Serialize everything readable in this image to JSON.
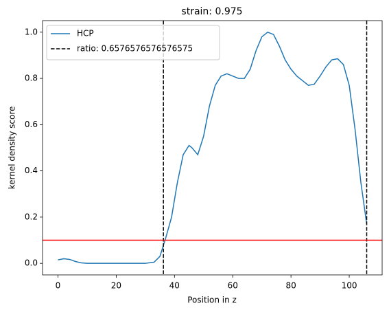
{
  "chart_data": {
    "type": "line",
    "title": "strain: 0.975",
    "x_label": "Position in z",
    "y_label": "kernel density score",
    "x": [
      0,
      2,
      4,
      6,
      8,
      10,
      15,
      20,
      25,
      30,
      33,
      35,
      37,
      39,
      41,
      43,
      45,
      46,
      48,
      50,
      52,
      54,
      56,
      58,
      60,
      62,
      64,
      66,
      68,
      70,
      72,
      74,
      76,
      78,
      80,
      82,
      84,
      86,
      88,
      90,
      92,
      94,
      96,
      98,
      100,
      102,
      104,
      106
    ],
    "series": [
      {
        "name": "HCP",
        "color": "#1f77b4",
        "values": [
          0.015,
          0.02,
          0.017,
          0.008,
          0.002,
          0.0,
          0.0,
          0.0,
          0.0,
          0.0,
          0.005,
          0.03,
          0.11,
          0.2,
          0.35,
          0.47,
          0.51,
          0.5,
          0.47,
          0.55,
          0.68,
          0.77,
          0.81,
          0.82,
          0.81,
          0.8,
          0.8,
          0.84,
          0.92,
          0.98,
          1.0,
          0.99,
          0.94,
          0.88,
          0.84,
          0.81,
          0.79,
          0.77,
          0.775,
          0.81,
          0.85,
          0.88,
          0.885,
          0.86,
          0.77,
          0.58,
          0.35,
          0.17
        ]
      }
    ],
    "vlines": {
      "name": "ratio: 0.6576576576576575",
      "color": "#000000",
      "values": [
        36.2,
        106
      ]
    },
    "hline": {
      "value": 0.1,
      "color": "#ff0000"
    },
    "xlim": [
      -5.3,
      111.3
    ],
    "ylim": [
      -0.05,
      1.05
    ],
    "xticks": [
      0,
      20,
      40,
      60,
      80,
      100
    ],
    "yticks": [
      {
        "value": 0,
        "label": "0.0"
      },
      0.2,
      0.4,
      0.6,
      0.8,
      {
        "value": 1,
        "label": "1.0"
      }
    ],
    "legend": "upper left"
  }
}
